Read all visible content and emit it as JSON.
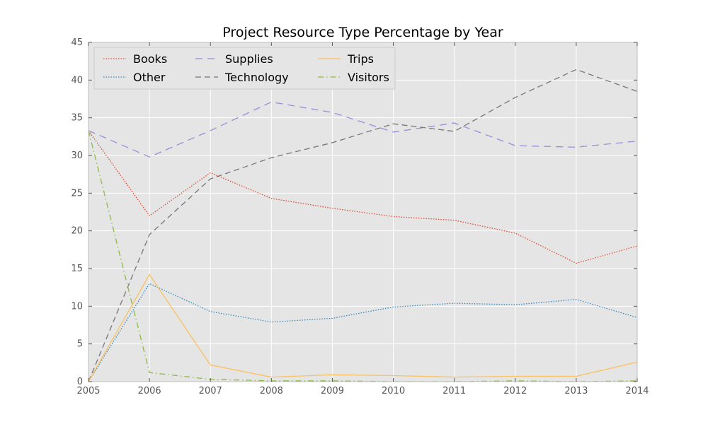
{
  "chart_data": {
    "type": "line",
    "title": "Project Resource Type Percentage by Year",
    "xlabel": "",
    "ylabel": "",
    "x": [
      2005,
      2006,
      2007,
      2008,
      2009,
      2010,
      2011,
      2012,
      2013,
      2014
    ],
    "xlim": [
      2005,
      2014
    ],
    "ylim": [
      0,
      45
    ],
    "yticks": [
      0,
      5,
      10,
      15,
      20,
      25,
      30,
      35,
      40,
      45
    ],
    "grid": true,
    "legend_position": "top-left",
    "legend_columns": 3,
    "background": "#e5e5e5",
    "series": [
      {
        "name": "Books",
        "color": "#e24a33",
        "style": "dotted",
        "values": [
          33.3,
          22.0,
          27.7,
          24.3,
          23.0,
          21.9,
          21.4,
          19.7,
          15.7,
          18.0
        ]
      },
      {
        "name": "Other",
        "color": "#348abd",
        "style": "dotted",
        "values": [
          0.0,
          13.0,
          9.3,
          7.9,
          8.4,
          9.9,
          10.4,
          10.2,
          10.9,
          8.5
        ]
      },
      {
        "name": "Supplies",
        "color": "#988ed5",
        "style": "dashed-long",
        "values": [
          33.3,
          29.8,
          33.3,
          37.1,
          35.7,
          33.1,
          34.3,
          31.3,
          31.1,
          31.9
        ]
      },
      {
        "name": "Technology",
        "color": "#777777",
        "style": "dashed",
        "values": [
          0.0,
          19.5,
          26.9,
          29.7,
          31.7,
          34.2,
          33.2,
          37.7,
          41.4,
          38.5
        ]
      },
      {
        "name": "Trips",
        "color": "#fbc15e",
        "style": "solid",
        "values": [
          0.0,
          14.2,
          2.2,
          0.6,
          0.9,
          0.8,
          0.6,
          0.7,
          0.7,
          2.6
        ]
      },
      {
        "name": "Visitors",
        "color": "#8eba42",
        "style": "dashdot",
        "values": [
          33.3,
          1.2,
          0.3,
          0.1,
          0.1,
          0.0,
          0.0,
          0.1,
          0.0,
          0.1
        ]
      }
    ]
  }
}
